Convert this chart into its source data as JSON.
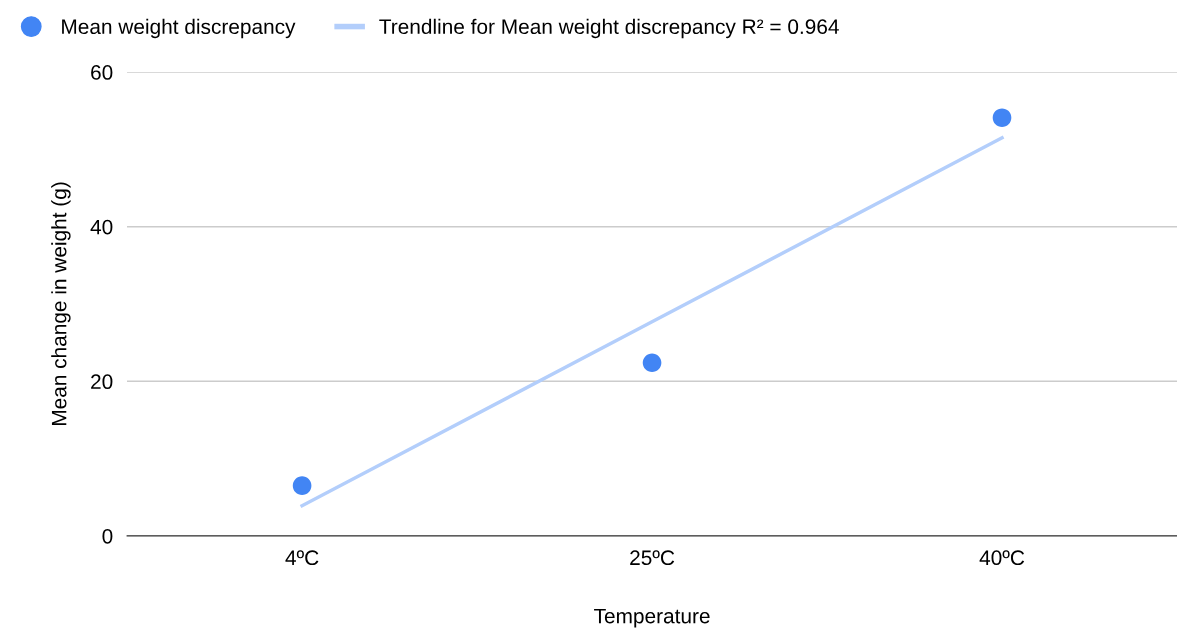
{
  "chart_data": {
    "type": "scatter",
    "xlabel": "Temperature",
    "ylabel": "Mean change in weight (g)",
    "categories": [
      "4ºC",
      "25ºC",
      "40ºC"
    ],
    "series": [
      {
        "name": "Mean weight discrepancy",
        "marker": "circle",
        "color": "#4285f4",
        "values": [
          6.5,
          22.4,
          54.1
        ]
      },
      {
        "name": "Trendline for Mean weight discrepancy R² = 0.964",
        "type": "line",
        "marker": "none",
        "color": "#b3cefb",
        "values": [
          3.9,
          27.7,
          51.5
        ]
      }
    ],
    "ylim": [
      0,
      60
    ],
    "yticks": [
      0,
      20,
      40,
      60
    ],
    "grid": "y",
    "legend": "top left"
  }
}
